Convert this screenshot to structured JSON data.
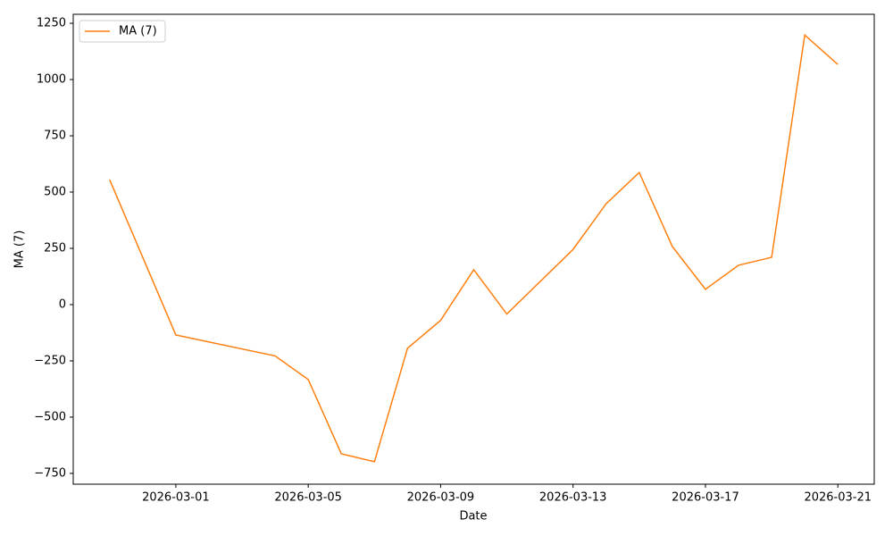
{
  "chart_data": {
    "type": "line",
    "xlabel": "Date",
    "ylabel": "MA (7)",
    "x": [
      "2026-02-27",
      "2026-03-01",
      "2026-03-04",
      "2026-03-05",
      "2026-03-06",
      "2026-03-07",
      "2026-03-08",
      "2026-03-09",
      "2026-03-10",
      "2026-03-11",
      "2026-03-13",
      "2026-03-14",
      "2026-03-15",
      "2026-03-16",
      "2026-03-17",
      "2026-03-18",
      "2026-03-19",
      "2026-03-20",
      "2026-03-21"
    ],
    "series": [
      {
        "name": "MA (7)",
        "color": "#ff7f0e",
        "values": [
          555,
          -135,
          -228,
          -333,
          -663,
          -698,
          -194,
          -70,
          155,
          -42,
          245,
          448,
          587,
          258,
          68,
          175,
          210,
          1198,
          1067
        ]
      }
    ],
    "xlim": [
      "2026-02-25T21:36Z",
      "2026-03-22T02:24Z"
    ],
    "xticks": [
      "2026-03-01",
      "2026-03-05",
      "2026-03-09",
      "2026-03-13",
      "2026-03-17",
      "2026-03-21"
    ],
    "ylim": [
      -798,
      1290
    ],
    "yticks": [
      {
        "value": -750,
        "label": "−750"
      },
      {
        "value": -500,
        "label": "−500"
      },
      {
        "value": -250,
        "label": "−250"
      },
      0,
      250,
      500,
      750,
      1000,
      1250
    ],
    "grid": false,
    "legend": "upper left"
  }
}
